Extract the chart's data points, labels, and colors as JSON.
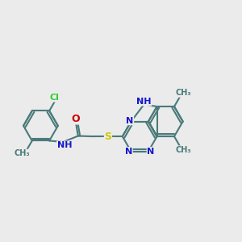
{
  "bg_color": "#ebebeb",
  "bond_color": "#4a7a7a",
  "bond_width": 1.5,
  "atom_colors": {
    "N": "#1515cc",
    "O": "#cc0000",
    "S": "#cccc00",
    "Cl": "#33cc33",
    "C": "#4a7a7a",
    "H": "#4a7a7a"
  },
  "font_size": 8.5,
  "fig_width": 3.0,
  "fig_height": 3.0,
  "xlim": [
    0,
    10
  ],
  "ylim": [
    0,
    7
  ]
}
